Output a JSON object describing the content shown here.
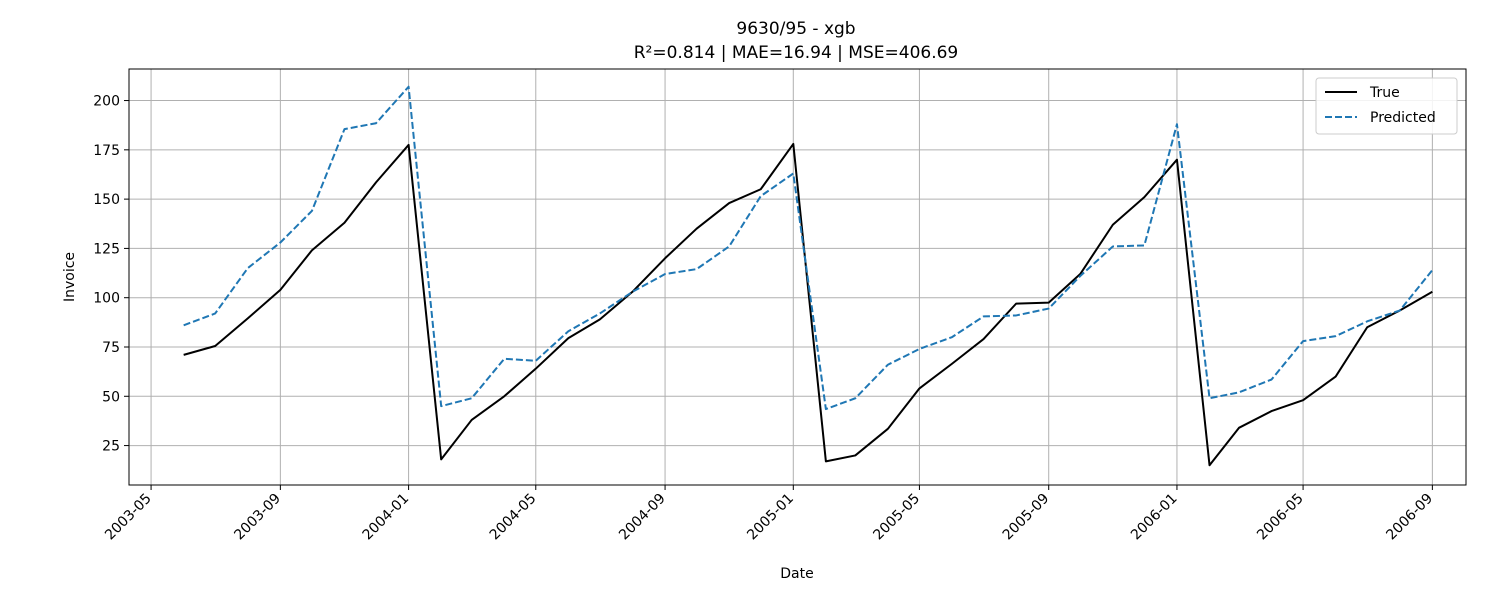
{
  "chart_data": {
    "type": "line",
    "title": "9630/95 - xgb",
    "subtitle": "R²=0.814 | MAE=16.94 | MSE=406.69",
    "xlabel": "Date",
    "ylabel": "Invoice",
    "x_ticks": [
      "2003-05",
      "2003-09",
      "2004-01",
      "2004-05",
      "2004-09",
      "2005-01",
      "2005-05",
      "2005-09",
      "2006-01",
      "2006-05",
      "2006-09"
    ],
    "y_ticks": [
      25,
      50,
      75,
      100,
      125,
      150,
      175,
      200
    ],
    "xlim": [
      "2003-04-10",
      "2006-10-03"
    ],
    "ylim": [
      5,
      216
    ],
    "grid": true,
    "legend_position": "top-right",
    "x": [
      "2003-06",
      "2003-07",
      "2003-08",
      "2003-09",
      "2003-10",
      "2003-11",
      "2003-12",
      "2004-01",
      "2004-02",
      "2004-03",
      "2004-04",
      "2004-05",
      "2004-06",
      "2004-07",
      "2004-08",
      "2004-09",
      "2004-10",
      "2004-11",
      "2004-12",
      "2005-01",
      "2005-02",
      "2005-03",
      "2005-04",
      "2005-05",
      "2005-06",
      "2005-07",
      "2005-08",
      "2005-09",
      "2005-10",
      "2005-11",
      "2005-12",
      "2006-01",
      "2006-02",
      "2006-03",
      "2006-04",
      "2006-05",
      "2006-06",
      "2006-07",
      "2006-08",
      "2006-09"
    ],
    "series": [
      {
        "name": "True",
        "color": "#000000",
        "style": "solid",
        "values": [
          71,
          75.5,
          89.5,
          104,
          124,
          138,
          158.5,
          177.5,
          18,
          38,
          50,
          64,
          79.5,
          89,
          103,
          120,
          135,
          148,
          155,
          178,
          17,
          20,
          33.5,
          54,
          66.5,
          79,
          97,
          97.5,
          112,
          137,
          151,
          170,
          15,
          34,
          42.5,
          48,
          60,
          85,
          93.5,
          103
        ]
      },
      {
        "name": "Predicted",
        "color": "#1f77b4",
        "style": "dashed",
        "values": [
          86,
          92,
          115,
          128,
          144,
          185.5,
          188.5,
          207,
          45,
          49,
          69,
          68,
          83,
          92,
          103,
          112,
          114.5,
          126,
          151.5,
          163,
          43.5,
          49,
          66,
          74,
          80,
          90.5,
          91,
          94.5,
          111,
          126,
          126.5,
          188,
          49,
          52,
          58.5,
          78,
          80.5,
          88,
          93.5,
          114
        ]
      }
    ]
  }
}
